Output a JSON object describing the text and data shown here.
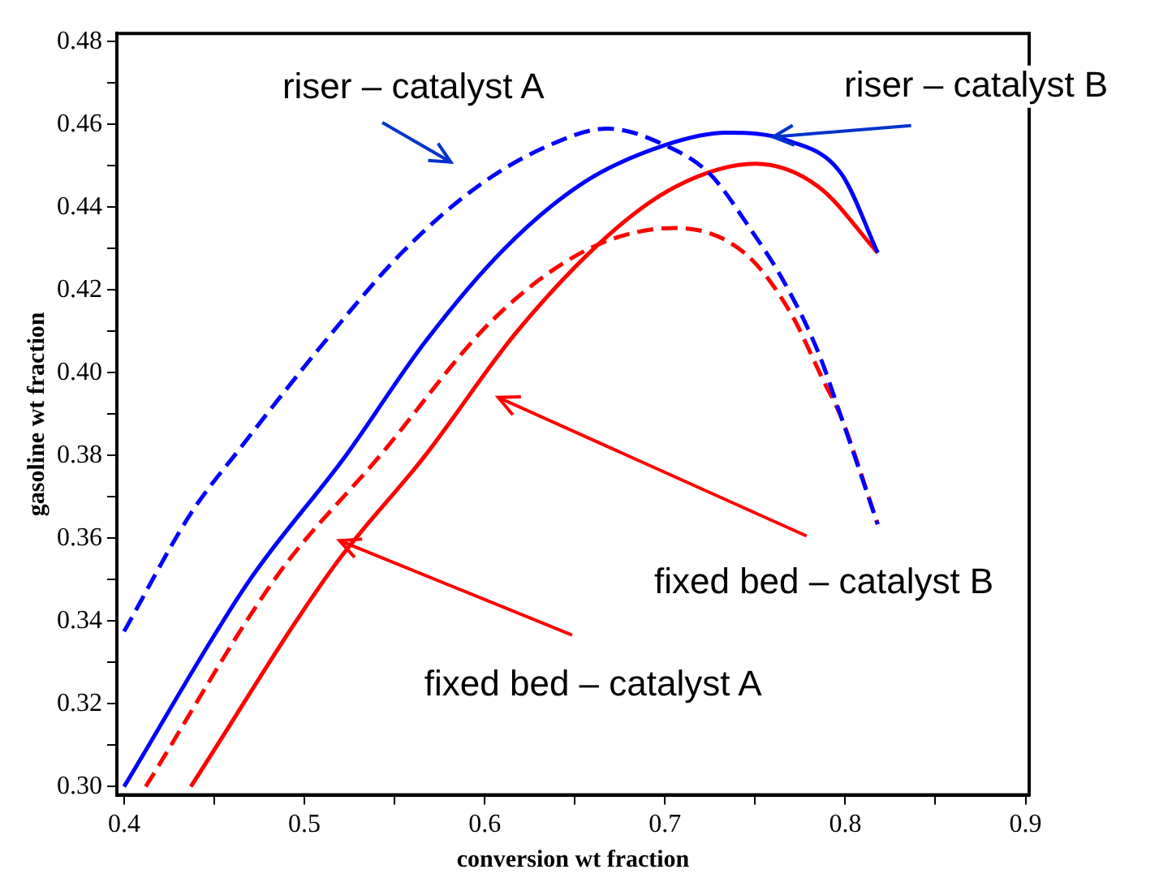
{
  "chart_data": {
    "type": "line",
    "xlabel": "conversion wt fraction",
    "ylabel": "gasoline wt fraction",
    "xlim": [
      0.396,
      0.902
    ],
    "ylim": [
      0.298,
      0.482
    ],
    "xticks": [
      0.4,
      {
        "value": 0.45,
        "label": null
      },
      0.5,
      {
        "value": 0.55,
        "label": null
      },
      0.6,
      {
        "value": 0.65,
        "label": null
      },
      0.7,
      {
        "value": 0.75,
        "label": null
      },
      0.8,
      {
        "value": 0.85,
        "label": null
      },
      0.9
    ],
    "yticks": [
      {
        "value": 0.3,
        "label": "0.30"
      },
      {
        "value": 0.31,
        "label": null
      },
      0.32,
      {
        "value": 0.33,
        "label": null
      },
      0.34,
      {
        "value": 0.35,
        "label": null
      },
      0.36,
      {
        "value": 0.37,
        "label": null
      },
      0.38,
      {
        "value": 0.39,
        "label": null
      },
      {
        "value": 0.4,
        "label": "0.40"
      },
      {
        "value": 0.41,
        "label": null
      },
      0.42,
      {
        "value": 0.43,
        "label": null
      },
      0.44,
      {
        "value": 0.45,
        "label": null
      },
      0.46,
      {
        "value": 0.47,
        "label": null
      },
      0.48
    ],
    "marker": "none",
    "series": [
      {
        "color": "#0000ff",
        "line_style": "dashed",
        "x": [
          0.4,
          0.437,
          0.463,
          0.516,
          0.554,
          0.596,
          0.636,
          0.668,
          0.7,
          0.725,
          0.747,
          0.766,
          0.785,
          0.798,
          0.818
        ],
        "values": [
          0.3375,
          0.366,
          0.381,
          0.41,
          0.429,
          0.445,
          0.455,
          0.459,
          0.455,
          0.448,
          0.435,
          0.422,
          0.405,
          0.389,
          0.3634
        ]
      },
      {
        "color": "#0000ff",
        "line_style": "solid",
        "x": [
          0.4,
          0.469,
          0.523,
          0.567,
          0.611,
          0.655,
          0.7,
          0.734,
          0.769,
          0.798,
          0.818
        ],
        "values": [
          0.3,
          0.3495,
          0.38,
          0.4075,
          0.43,
          0.446,
          0.455,
          0.458,
          0.456,
          0.448,
          0.429
        ]
      },
      {
        "color": "#ff0000",
        "line_style": "dashed",
        "x": [
          0.412,
          0.485,
          0.542,
          0.605,
          0.658,
          0.706,
          0.744,
          0.769,
          0.788,
          0.798,
          0.818
        ],
        "values": [
          0.3,
          0.351,
          0.38,
          0.413,
          0.43,
          0.435,
          0.429,
          0.415,
          0.398,
          0.389,
          0.3634
        ]
      },
      {
        "color": "#ff0000",
        "line_style": "solid",
        "x": [
          0.437,
          0.516,
          0.567,
          0.618,
          0.668,
          0.706,
          0.75,
          0.785,
          0.818
        ],
        "values": [
          0.3,
          0.353,
          0.38,
          0.41,
          0.433,
          0.445,
          0.4505,
          0.445,
          0.429
        ]
      }
    ],
    "annotations": [
      "riser – catalyst A",
      {
        "text": "riser – catalyst B",
        "x": 0.76,
        "y": 0.457
      },
      "fixed bed – catalyst B",
      "fixed bed – catalyst A"
    ]
  }
}
